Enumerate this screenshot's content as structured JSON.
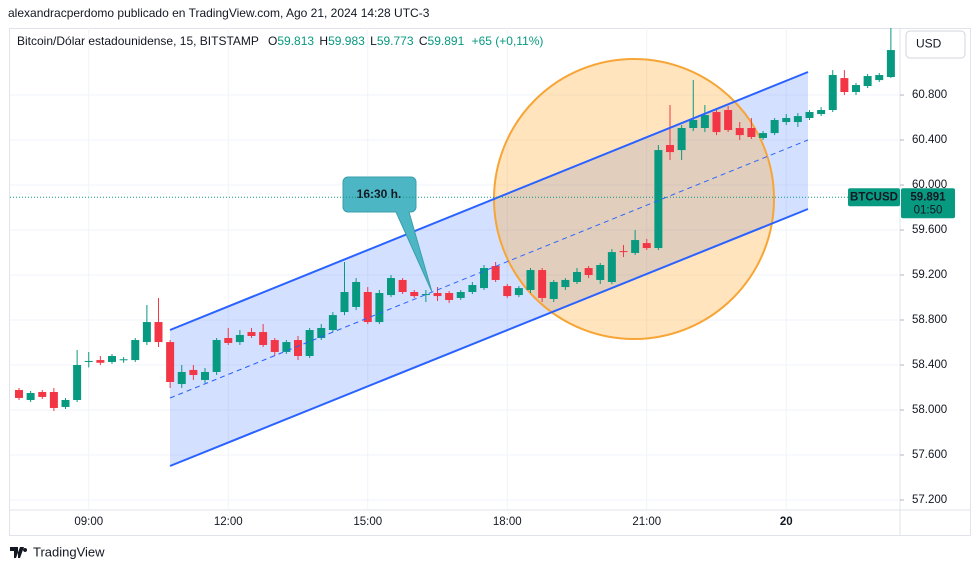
{
  "header": {
    "byline": "alexandracperdomo publicado en TradingView.com, Ago 21, 2024 14:28 UTC-3",
    "symbol": "Bitcoin/Dólar estadounidense, 15, BITSTAMP",
    "ohlc": [
      {
        "label": "O",
        "value": 59.813
      },
      {
        "label": "H",
        "value": 59.983
      },
      {
        "label": "L",
        "value": 59.773
      },
      {
        "label": "C",
        "value": 59.891
      }
    ],
    "change": "+65 (+0,11%)",
    "currency": "USD"
  },
  "footer": {
    "logo": "TradingView"
  },
  "chart_data": {
    "type": "candlestick",
    "colors": {
      "up": "#089981",
      "down": "#f23645"
    },
    "grid": true,
    "annotation": "16:30 h.",
    "price_line": {
      "symbol": "BTCUSD",
      "value": 59.891,
      "countdown": "01:50"
    },
    "ylim": [
      57.111,
      61.396
    ],
    "yticks": [
      {
        "value": 57.2,
        "label": "57.200"
      },
      {
        "value": 57.6,
        "label": "57.600"
      },
      {
        "value": 58.0,
        "label": "58.000"
      },
      {
        "value": 58.4,
        "label": "58.400"
      },
      {
        "value": 58.8,
        "label": "58.800"
      },
      {
        "value": 59.2,
        "label": "59.200"
      },
      {
        "value": 59.6,
        "label": "59.600"
      },
      {
        "value": 60.0,
        "label": "60.000"
      },
      {
        "value": 60.4,
        "label": "60.400"
      },
      {
        "value": 60.8,
        "label": "60.800"
      }
    ],
    "categories": [
      null,
      null,
      null,
      null,
      null,
      null,
      "09:00",
      null,
      null,
      null,
      null,
      null,
      null,
      null,
      null,
      null,
      null,
      null,
      "12:00",
      null,
      null,
      null,
      null,
      null,
      null,
      null,
      null,
      null,
      null,
      null,
      "15:00",
      null,
      null,
      null,
      null,
      null,
      null,
      null,
      null,
      null,
      null,
      null,
      "18:00",
      null,
      null,
      null,
      null,
      null,
      null,
      null,
      null,
      null,
      null,
      null,
      "21:00",
      null,
      null,
      null,
      null,
      null,
      null,
      null,
      null,
      null,
      null,
      null,
      "20",
      null,
      null,
      null,
      null,
      null,
      null,
      null,
      null,
      null
    ],
    "open": [
      58.178,
      58.089,
      58.16,
      58.16,
      58.027,
      58.089,
      58.427,
      58.444,
      58.427,
      58.444,
      58.444,
      58.604,
      58.782,
      58.604,
      58.231,
      58.356,
      58.267,
      58.338,
      58.64,
      58.604,
      58.693,
      58.693,
      58.622,
      58.516,
      58.622,
      58.48,
      58.64,
      58.711,
      58.871,
      58.916,
      59.049,
      58.782,
      59.022,
      59.156,
      59.049,
      59.022,
      59.04,
      59.04,
      58.996,
      59.049,
      59.084,
      59.28,
      59.102,
      59.022,
      59.067,
      59.244,
      58.987,
      59.093,
      59.138,
      59.262,
      59.156,
      59.138,
      59.413,
      59.396,
      59.484,
      59.44,
      60.356,
      60.311,
      60.507,
      60.507,
      60.649,
      60.667,
      60.507,
      60.507,
      60.418,
      60.462,
      60.56,
      60.56,
      60.596,
      60.631,
      60.667,
      60.951,
      60.827,
      60.88,
      60.933,
      60.96
    ],
    "high": [
      58.196,
      58.169,
      58.178,
      58.196,
      58.107,
      58.533,
      58.516,
      58.48,
      58.498,
      58.471,
      58.64,
      58.933,
      58.996,
      58.622,
      58.4,
      58.4,
      58.373,
      58.64,
      58.729,
      58.711,
      58.729,
      58.764,
      58.64,
      58.622,
      58.658,
      58.729,
      58.764,
      58.871,
      59.316,
      59.173,
      59.093,
      59.067,
      59.2,
      59.173,
      59.067,
      59.067,
      59.093,
      59.058,
      59.067,
      59.138,
      59.289,
      59.316,
      59.12,
      59.102,
      59.262,
      59.262,
      59.156,
      59.173,
      59.262,
      59.28,
      59.307,
      59.431,
      59.467,
      59.6,
      59.52,
      60.356,
      60.711,
      60.533,
      60.933,
      60.711,
      60.667,
      60.702,
      60.56,
      60.596,
      60.48,
      60.596,
      60.631,
      60.64,
      60.667,
      60.693,
      61.022,
      61.022,
      60.907,
      60.987,
      60.996,
      61.396
    ],
    "low": [
      58.089,
      58.071,
      58.098,
      57.991,
      58.009,
      58.071,
      58.378,
      58.4,
      58.41,
      58.42,
      58.427,
      58.578,
      58.56,
      58.196,
      58.196,
      58.267,
      58.24,
      58.311,
      58.578,
      58.578,
      58.64,
      58.56,
      58.48,
      58.498,
      58.444,
      58.462,
      58.622,
      58.693,
      58.844,
      58.889,
      58.764,
      58.764,
      59.004,
      59.031,
      58.996,
      58.96,
      58.969,
      58.951,
      58.978,
      59.031,
      59.067,
      59.138,
      58.996,
      59.004,
      59.04,
      58.96,
      58.96,
      59.067,
      59.12,
      59.173,
      59.12,
      59.12,
      59.36,
      59.378,
      59.422,
      59.422,
      60.222,
      60.222,
      60.48,
      60.471,
      60.444,
      60.471,
      60.4,
      60.409,
      60.4,
      60.444,
      60.533,
      60.516,
      60.578,
      60.613,
      60.649,
      60.8,
      60.8,
      60.862,
      60.916,
      60.951
    ],
    "close": [
      58.107,
      58.151,
      58.116,
      58.018,
      58.089,
      58.4,
      58.436,
      58.42,
      58.48,
      58.451,
      58.622,
      58.782,
      58.604,
      58.249,
      58.338,
      58.311,
      58.338,
      58.622,
      58.596,
      58.667,
      58.658,
      58.578,
      58.516,
      58.604,
      58.48,
      58.711,
      58.729,
      58.844,
      59.049,
      59.138,
      58.782,
      59.04,
      59.173,
      59.049,
      59.013,
      59.031,
      59.013,
      58.978,
      59.049,
      59.111,
      59.262,
      59.156,
      59.013,
      59.084,
      59.244,
      58.996,
      59.138,
      59.156,
      59.227,
      59.2,
      59.289,
      59.404,
      59.404,
      59.511,
      59.44,
      60.311,
      60.293,
      60.507,
      60.578,
      60.622,
      60.471,
      60.489,
      60.444,
      60.427,
      60.462,
      60.578,
      60.596,
      60.613,
      60.649,
      60.667,
      60.978,
      60.827,
      60.889,
      60.969,
      60.978,
      61.2
    ]
  }
}
